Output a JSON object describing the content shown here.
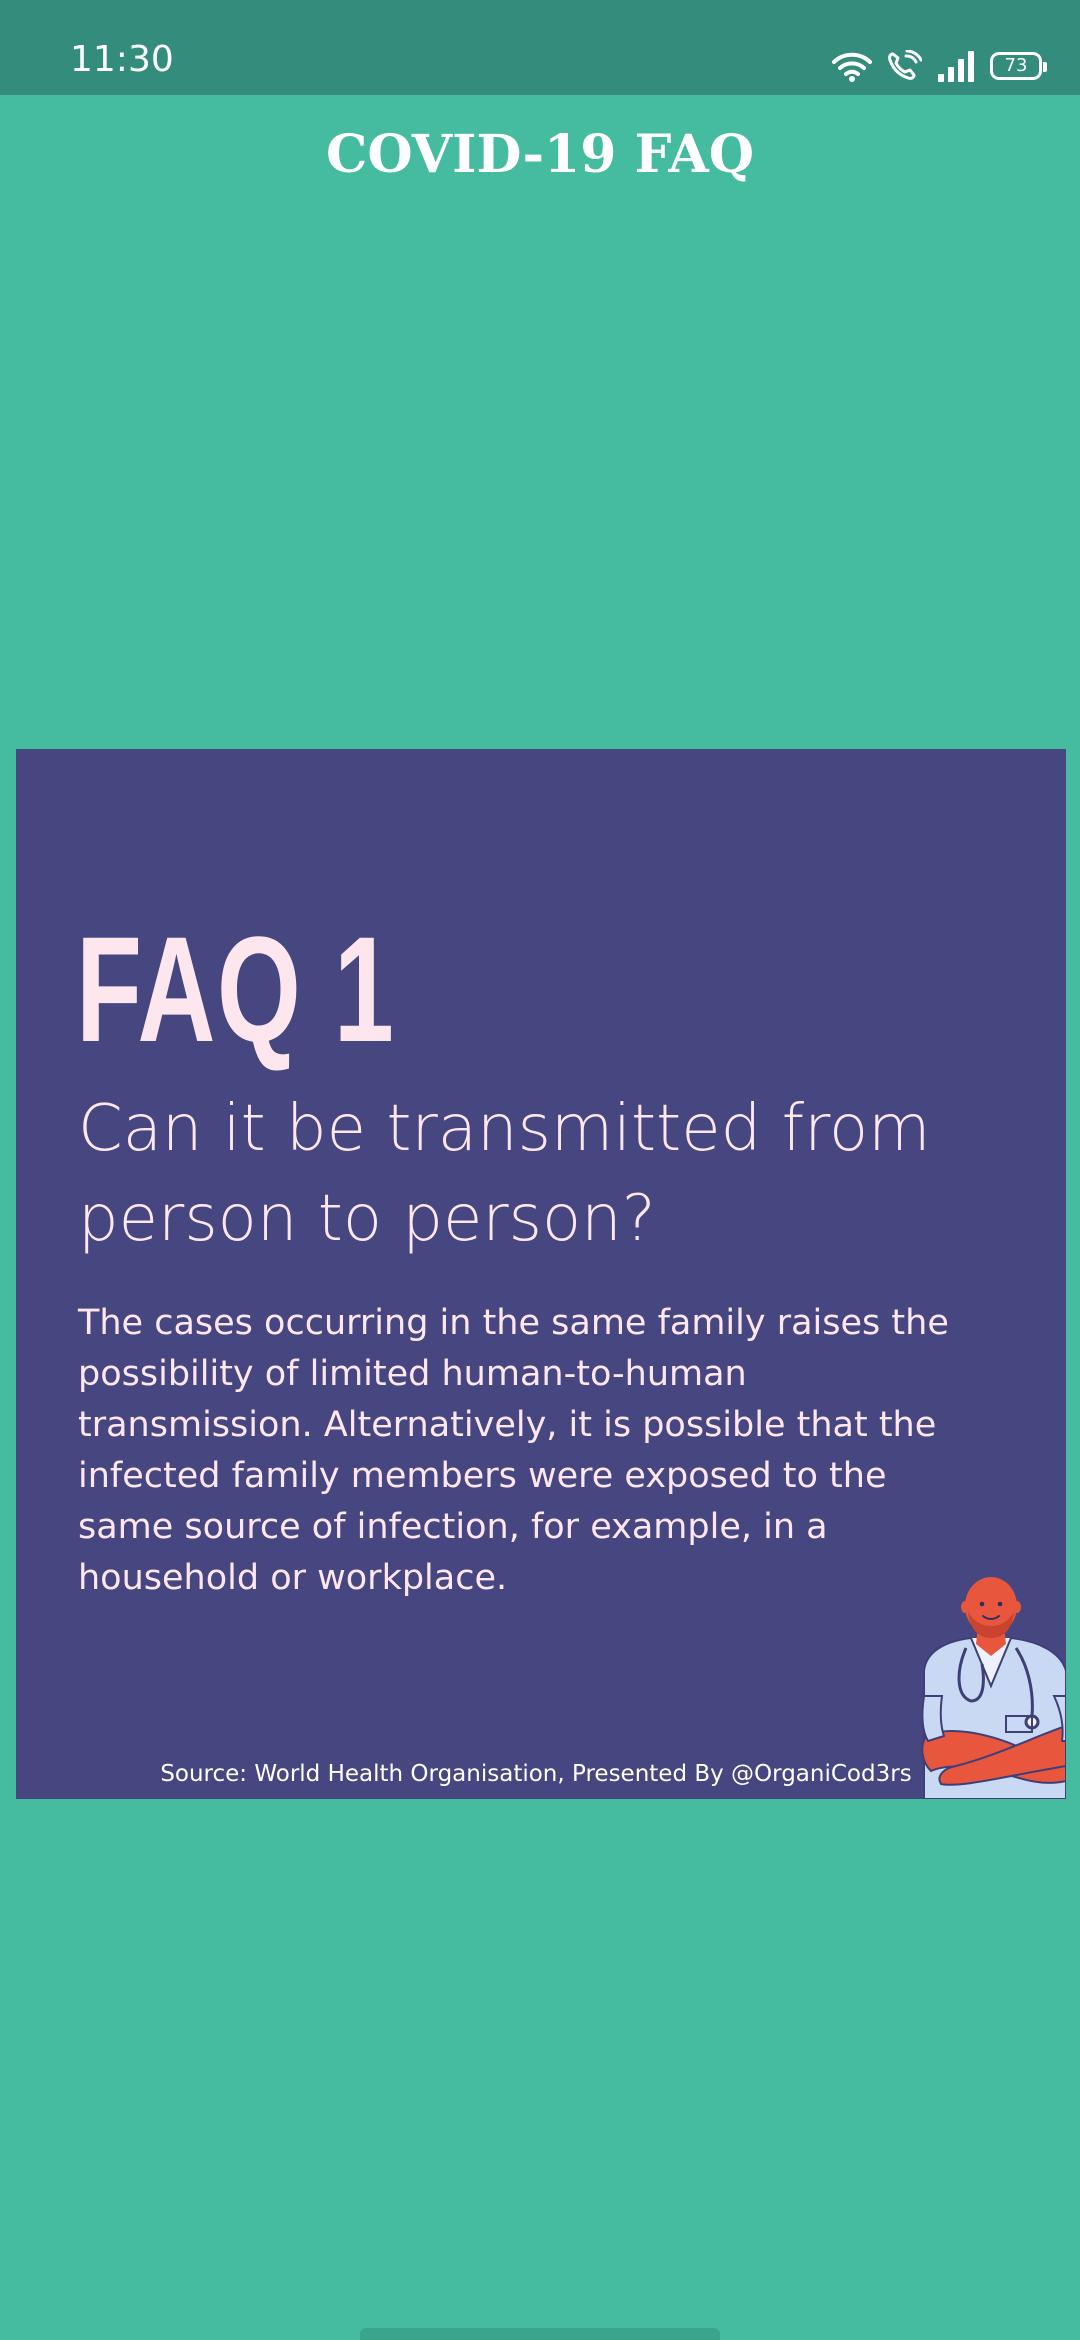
{
  "status_bar": {
    "time": "11:30",
    "battery": "73",
    "icons": [
      "wifi-icon",
      "wifi-calling-icon",
      "signal-icon",
      "battery-icon"
    ]
  },
  "app": {
    "title": "COVID-19 FAQ"
  },
  "faq": {
    "heading": "FAQ 1",
    "question": "Can it be transmitted from person to person?",
    "answer": "The cases occurring in the same family raises the possibility of limited human-to-human transmission. Alternatively, it is possible that the infected family members were exposed to the same source of infection, for example, in a household or workplace.",
    "source": "Source: World Health Organisation, Presented By @OrganiCod3rs",
    "illustration": "doctor-illustration"
  },
  "colors": {
    "background": "#45BC9F",
    "status_bar": "#338C7C",
    "card": "#464681",
    "card_text": "#FEE6EF"
  }
}
